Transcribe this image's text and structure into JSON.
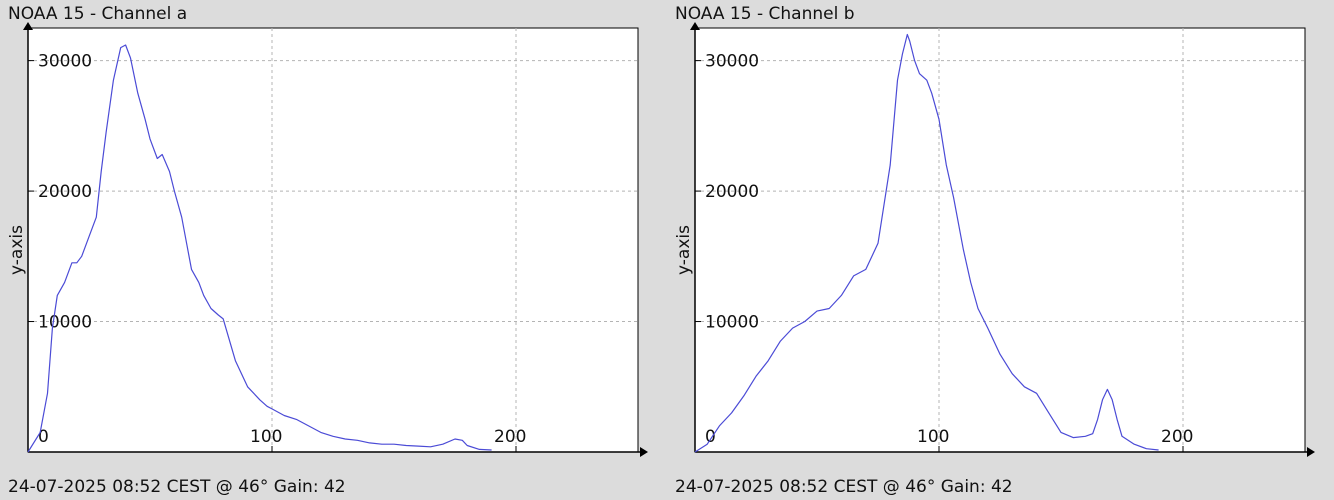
{
  "colors": {
    "line": "#4b4bd6",
    "grid": "#b4b4b4",
    "axis": "#000000",
    "plot_bg": "#ffffff",
    "page_bg": "#dcdcdc"
  },
  "chart_data": [
    {
      "type": "line",
      "title": "NOAA 15 - Channel a",
      "footer": "24-07-2025 08:52 CEST @ 46° Gain: 42",
      "ylabel": "y-axis",
      "xlim": [
        0,
        250
      ],
      "ylim": [
        0,
        32500
      ],
      "xticks": [
        0,
        100,
        200
      ],
      "yticks": [
        10000,
        20000,
        30000
      ],
      "grid": true,
      "series": [
        {
          "x": [
            0,
            5,
            8,
            10,
            12,
            15,
            18,
            20,
            22,
            25,
            28,
            30,
            32,
            35,
            38,
            40,
            42,
            45,
            48,
            50,
            53,
            55,
            58,
            60,
            63,
            65,
            67,
            70,
            72,
            75,
            78,
            80,
            85,
            90,
            95,
            98,
            100,
            105,
            110,
            115,
            120,
            125,
            130,
            135,
            140,
            145,
            150,
            155,
            160,
            165,
            170,
            175,
            178,
            180,
            185,
            190
          ],
          "y": [
            0,
            1500,
            4500,
            9500,
            12000,
            13000,
            14500,
            14500,
            15000,
            16500,
            18000,
            21500,
            24500,
            28500,
            31000,
            31200,
            30200,
            27500,
            25500,
            24000,
            22500,
            22800,
            21500,
            20000,
            18000,
            16000,
            14000,
            13000,
            12000,
            11000,
            10500,
            10200,
            7000,
            5000,
            4000,
            3500,
            3300,
            2800,
            2500,
            2000,
            1500,
            1200,
            1000,
            900,
            700,
            600,
            600,
            500,
            450,
            400,
            600,
            1000,
            900,
            500,
            200,
            150
          ]
        }
      ]
    },
    {
      "type": "line",
      "title": "NOAA 15 - Channel b",
      "footer": "24-07-2025 08:52 CEST @ 46° Gain: 42",
      "ylabel": "y-axis",
      "xlim": [
        0,
        250
      ],
      "ylim": [
        0,
        32500
      ],
      "xticks": [
        0,
        100,
        200
      ],
      "yticks": [
        10000,
        20000,
        30000
      ],
      "grid": true,
      "series": [
        {
          "x": [
            0,
            5,
            10,
            15,
            20,
            25,
            30,
            35,
            40,
            45,
            50,
            55,
            60,
            65,
            70,
            75,
            80,
            83,
            85,
            87,
            88,
            90,
            92,
            95,
            97,
            100,
            103,
            106,
            110,
            113,
            116,
            120,
            125,
            130,
            135,
            140,
            145,
            150,
            155,
            160,
            163,
            165,
            167,
            169,
            171,
            173,
            175,
            180,
            185,
            190
          ],
          "y": [
            0,
            600,
            2000,
            3000,
            4300,
            5800,
            7000,
            8500,
            9500,
            10000,
            10800,
            11000,
            12000,
            13500,
            14000,
            16000,
            22000,
            28500,
            30500,
            32000,
            31500,
            30000,
            29000,
            28500,
            27500,
            25500,
            22000,
            19500,
            15500,
            13000,
            11000,
            9500,
            7500,
            6000,
            5000,
            4500,
            3000,
            1500,
            1100,
            1200,
            1400,
            2500,
            4000,
            4800,
            4000,
            2500,
            1200,
            600,
            250,
            150
          ]
        }
      ]
    }
  ]
}
